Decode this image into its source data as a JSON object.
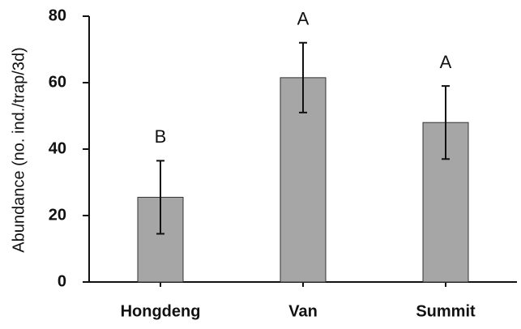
{
  "chart_data": {
    "type": "bar",
    "y_label": "Abundance (no. ind./trap/3d)",
    "categories": [
      "Hongdeng",
      "Van",
      "Summit"
    ],
    "values": [
      25.5,
      61.5,
      48
    ],
    "errors": [
      11,
      10.5,
      11
    ],
    "letters": [
      "B",
      "A",
      "A"
    ],
    "color": "#a6a6a6",
    "ylim": [
      0,
      80
    ],
    "yticks": [
      0,
      20,
      40,
      60,
      80
    ],
    "grid": false
  }
}
